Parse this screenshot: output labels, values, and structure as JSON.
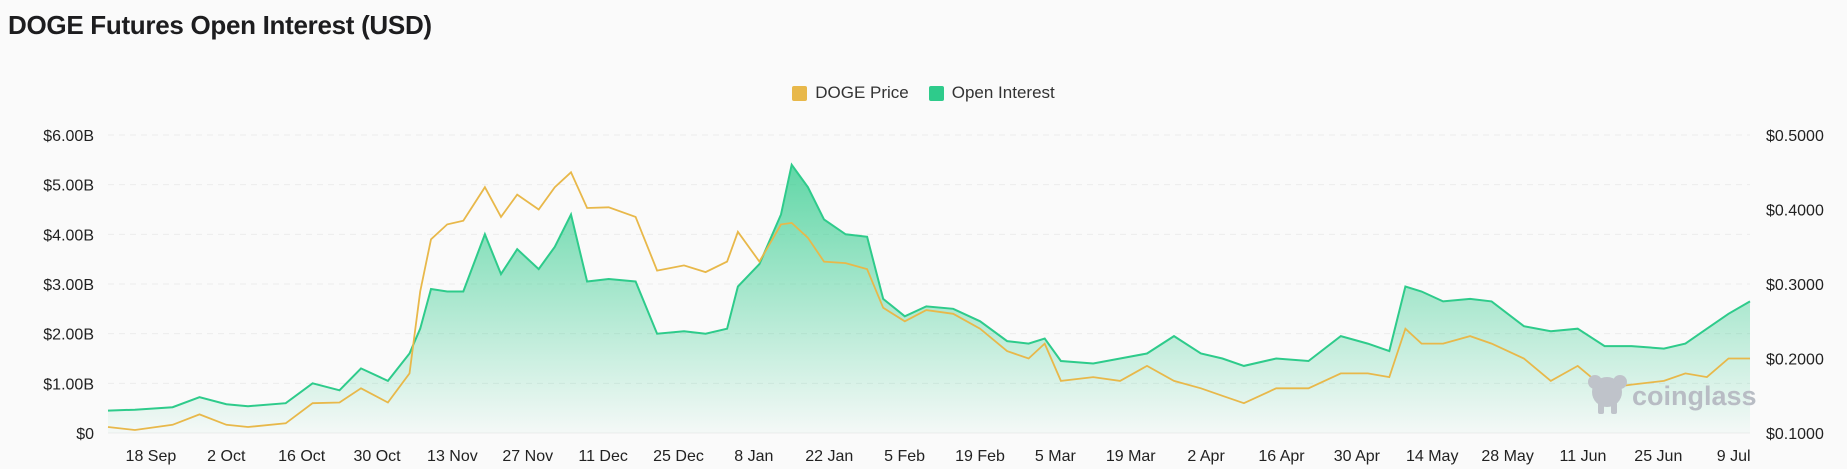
{
  "chart_data": {
    "type": "area",
    "title": "DOGE Futures Open Interest (USD)",
    "legend": {
      "placement": "top-center",
      "entries": [
        "DOGE Price",
        "Open Interest"
      ]
    },
    "colors": {
      "price": "#e8b84a",
      "oi": "#2ecb8b",
      "grid": "#ebebeb"
    },
    "x_ticks": [
      "18 Sep",
      "2 Oct",
      "16 Oct",
      "30 Oct",
      "13 Nov",
      "27 Nov",
      "11 Dec",
      "25 Dec",
      "8 Jan",
      "22 Jan",
      "5 Feb",
      "19 Feb",
      "5 Mar",
      "19 Mar",
      "2 Apr",
      "16 Apr",
      "30 Apr",
      "14 May",
      "28 May",
      "11 Jun",
      "25 Jun",
      "9 Jul"
    ],
    "y_left": {
      "ticks": [
        "$0",
        "$1.00B",
        "$2.00B",
        "$3.00B",
        "$4.00B",
        "$5.00B",
        "$6.00B"
      ],
      "ylim": [
        0,
        6000000000
      ]
    },
    "y_right": {
      "ticks": [
        "$0.1000",
        "$0.2000",
        "$0.3000",
        "$0.4000",
        "$0.5000"
      ],
      "ylim": [
        0.1,
        0.5
      ]
    },
    "x": [
      "2024-09-13",
      "2024-09-18",
      "2024-09-25",
      "2024-09-30",
      "2024-10-05",
      "2024-10-09",
      "2024-10-16",
      "2024-10-21",
      "2024-10-26",
      "2024-10-30",
      "2024-11-04",
      "2024-11-08",
      "2024-11-10",
      "2024-11-12",
      "2024-11-15",
      "2024-11-18",
      "2024-11-22",
      "2024-11-25",
      "2024-11-28",
      "2024-12-02",
      "2024-12-05",
      "2024-12-08",
      "2024-12-11",
      "2024-12-15",
      "2024-12-20",
      "2024-12-24",
      "2024-12-29",
      "2025-01-02",
      "2025-01-06",
      "2025-01-08",
      "2025-01-12",
      "2025-01-16",
      "2025-01-18",
      "2025-01-21",
      "2025-01-24",
      "2025-01-28",
      "2025-02-01",
      "2025-02-04",
      "2025-02-08",
      "2025-02-12",
      "2025-02-17",
      "2025-02-22",
      "2025-02-27",
      "2025-03-03",
      "2025-03-06",
      "2025-03-09",
      "2025-03-15",
      "2025-03-20",
      "2025-03-25",
      "2025-03-30",
      "2025-04-04",
      "2025-04-08",
      "2025-04-12",
      "2025-04-18",
      "2025-04-24",
      "2025-04-30",
      "2025-05-05",
      "2025-05-09",
      "2025-05-12",
      "2025-05-15",
      "2025-05-19",
      "2025-05-24",
      "2025-05-28",
      "2025-06-03",
      "2025-06-08",
      "2025-06-13",
      "2025-06-18",
      "2025-06-23",
      "2025-06-29",
      "2025-07-03",
      "2025-07-07",
      "2025-07-11",
      "2025-07-15"
    ],
    "series": [
      {
        "name": "Open Interest",
        "axis": "left",
        "values": [
          450000000,
          470000000,
          520000000,
          720000000,
          580000000,
          540000000,
          600000000,
          1000000000,
          860000000,
          1300000000,
          1050000000,
          1600000000,
          2100000000,
          2900000000,
          2850000000,
          2850000000,
          4000000000,
          3200000000,
          3700000000,
          3300000000,
          3750000000,
          4400000000,
          3050000000,
          3100000000,
          3050000000,
          2000000000,
          2050000000,
          2000000000,
          2100000000,
          2950000000,
          3400000000,
          4400000000,
          5400000000,
          4950000000,
          4300000000,
          4000000000,
          3950000000,
          2700000000,
          2350000000,
          2550000000,
          2500000000,
          2250000000,
          1850000000,
          1800000000,
          1900000000,
          1450000000,
          1400000000,
          1500000000,
          1600000000,
          1950000000,
          1600000000,
          1500000000,
          1350000000,
          1500000000,
          1450000000,
          1950000000,
          1800000000,
          1650000000,
          2950000000,
          2850000000,
          2650000000,
          2700000000,
          2650000000,
          2150000000,
          2050000000,
          2100000000,
          1750000000,
          1750000000,
          1700000000,
          1800000000,
          2100000000,
          2400000000,
          2650000000
        ]
      },
      {
        "name": "DOGE Price",
        "axis": "right",
        "values": [
          0.108,
          0.104,
          0.111,
          0.125,
          0.111,
          0.108,
          0.113,
          0.14,
          0.141,
          0.16,
          0.141,
          0.18,
          0.29,
          0.36,
          0.38,
          0.385,
          0.43,
          0.39,
          0.42,
          0.4,
          0.43,
          0.45,
          0.402,
          0.403,
          0.39,
          0.318,
          0.325,
          0.316,
          0.33,
          0.37,
          0.33,
          0.38,
          0.382,
          0.362,
          0.33,
          0.328,
          0.32,
          0.268,
          0.25,
          0.265,
          0.26,
          0.24,
          0.21,
          0.2,
          0.22,
          0.17,
          0.175,
          0.17,
          0.19,
          0.17,
          0.16,
          0.15,
          0.14,
          0.16,
          0.16,
          0.18,
          0.18,
          0.175,
          0.24,
          0.22,
          0.22,
          0.23,
          0.22,
          0.2,
          0.17,
          0.19,
          0.16,
          0.165,
          0.17,
          0.18,
          0.175,
          0.2,
          0.2
        ]
      }
    ]
  }
}
